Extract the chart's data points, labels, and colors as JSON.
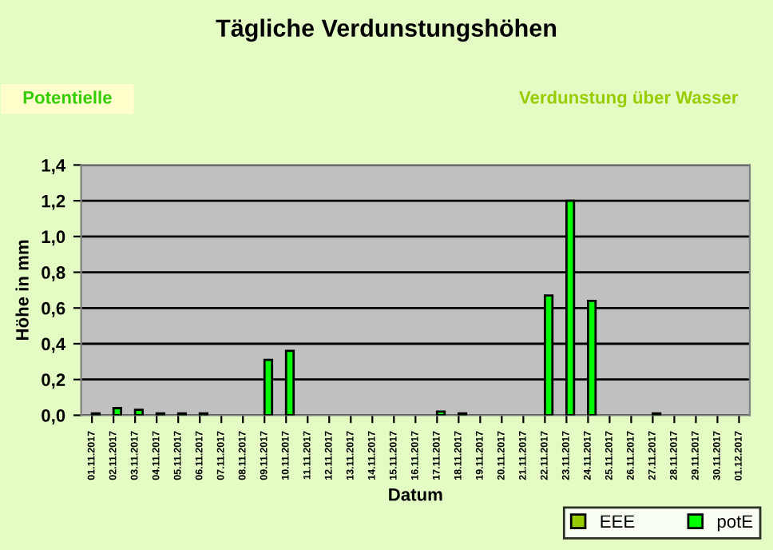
{
  "chart_data": {
    "type": "bar",
    "title": "Tägliche Verdunstungshöhen",
    "annotations": [
      "Potentielle",
      "Verdunstung über Wasser"
    ],
    "xlabel": "Datum",
    "ylabel": "Höhe in mm",
    "categories": [
      "01.11.2017",
      "02.11.2017",
      "03.11.2017",
      "04.11.2017",
      "05.11.2017",
      "06.11.2017",
      "07.11.2017",
      "08.11.2017",
      "09.11.2017",
      "10.11.2017",
      "11.11.2017",
      "12.11.2017",
      "13.11.2017",
      "14.11.2017",
      "15.11.2017",
      "16.11.2017",
      "17.11.2017",
      "18.11.2017",
      "19.11.2017",
      "20.11.2017",
      "21.11.2017",
      "22.11.2017",
      "23.11.2017",
      "24.11.2017",
      "25.11.2017",
      "26.11.2017",
      "27.11.2017",
      "28.11.2017",
      "29.11.2017",
      "30.11.2017",
      "01.12.2017"
    ],
    "series": [
      {
        "name": "EEE",
        "color": "#99cc00",
        "values": [
          null,
          null,
          null,
          null,
          null,
          null,
          null,
          null,
          null,
          null,
          null,
          null,
          null,
          null,
          null,
          null,
          null,
          null,
          null,
          null,
          null,
          null,
          null,
          null,
          null,
          null,
          null,
          null,
          null,
          null,
          null
        ]
      },
      {
        "name": "potE",
        "color": "#00ff00",
        "values": [
          0.01,
          0.04,
          0.03,
          0.01,
          0.01,
          0.01,
          null,
          null,
          0.31,
          0.36,
          null,
          null,
          null,
          null,
          null,
          null,
          0.02,
          0.01,
          null,
          null,
          null,
          0.67,
          1.2,
          0.64,
          null,
          null,
          0.01,
          null,
          null,
          null,
          null
        ]
      }
    ],
    "ylim": [
      0,
      1.4
    ],
    "yticks": [
      {
        "value": 0,
        "label": "0,0"
      },
      {
        "value": 0.2,
        "label": "0,2"
      },
      {
        "value": 0.4,
        "label": "0,4"
      },
      {
        "value": 0.6,
        "label": "0,6"
      },
      {
        "value": 0.8,
        "label": "0,8"
      },
      {
        "value": 1.0,
        "label": "1,0"
      },
      {
        "value": 1.2,
        "label": "1,2"
      },
      {
        "value": 1.4,
        "label": "1,4"
      }
    ],
    "grid": "y",
    "legend": "bottom right"
  }
}
